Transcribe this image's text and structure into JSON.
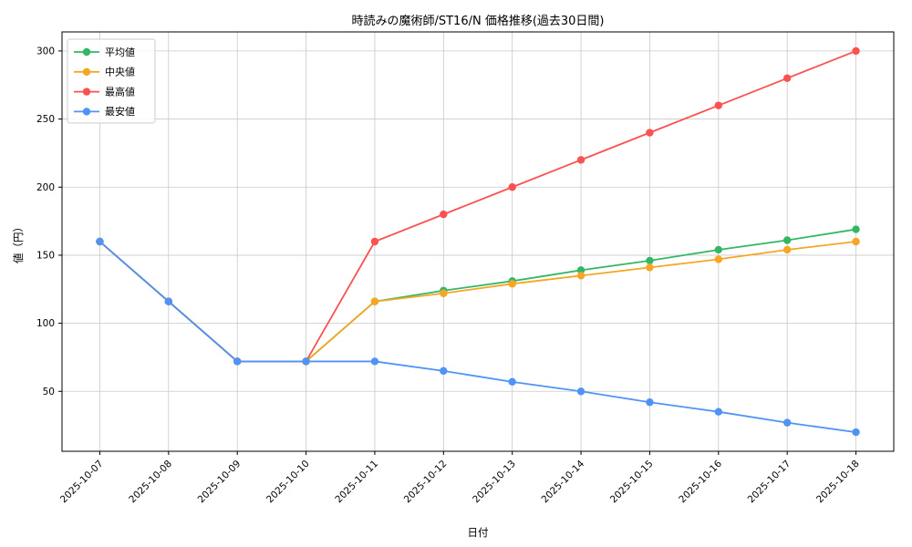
{
  "chart_data": {
    "type": "line",
    "title": "時読みの魔術師/ST16/N 価格推移(過去30日間)",
    "xlabel": "日付",
    "ylabel": "値（円）",
    "x": [
      "2025-10-07",
      "2025-10-08",
      "2025-10-09",
      "2025-10-10",
      "2025-10-11",
      "2025-10-12",
      "2025-10-13",
      "2025-10-14",
      "2025-10-15",
      "2025-10-16",
      "2025-10-17",
      "2025-10-18"
    ],
    "series": [
      {
        "name": "平均値",
        "color": "#33b766",
        "values": [
          160,
          116,
          72,
          72,
          116,
          124,
          131,
          139,
          146,
          154,
          161,
          169
        ]
      },
      {
        "name": "中央値",
        "color": "#f5a623",
        "values": [
          160,
          116,
          72,
          72,
          116,
          122,
          129,
          135,
          141,
          147,
          154,
          160
        ]
      },
      {
        "name": "最高値",
        "color": "#fa5151",
        "values": [
          160,
          116,
          72,
          72,
          160,
          180,
          200,
          220,
          240,
          260,
          280,
          300
        ]
      },
      {
        "name": "最安値",
        "color": "#4f94f5",
        "values": [
          160,
          116,
          72,
          72,
          72,
          65,
          57,
          50,
          42,
          35,
          27,
          20
        ]
      }
    ],
    "yticks": [
      50,
      100,
      150,
      200,
      250,
      300
    ],
    "ylim": [
      6,
      314
    ],
    "grid": true,
    "legend_position": "upper left",
    "grid_color": "#c9c9c9",
    "legend_border_color": "#cccccc"
  }
}
